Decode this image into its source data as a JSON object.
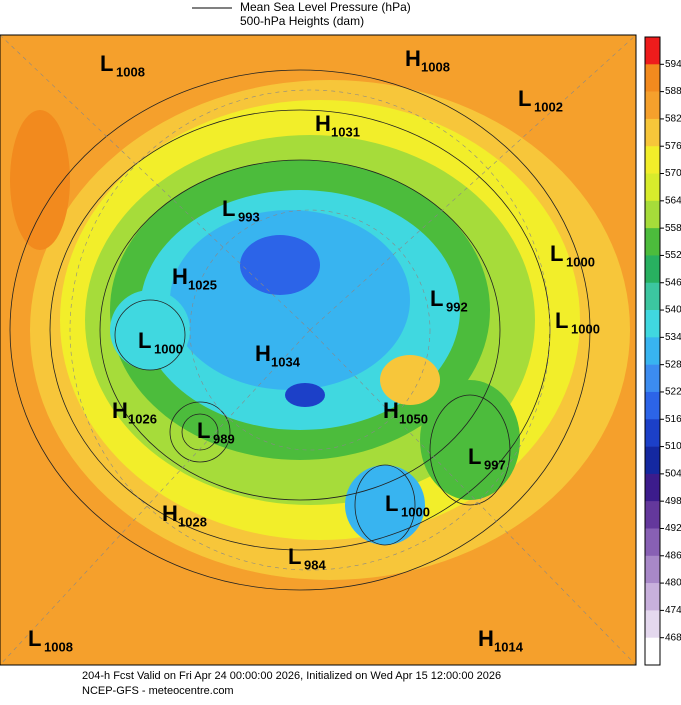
{
  "legend": {
    "lines": [
      "Mean Sea Level Pressure (hPa)",
      "500-hPa Heights (dam)"
    ]
  },
  "centers": [
    {
      "type": "L",
      "value": "1008"
    },
    {
      "type": "H",
      "value": "1008"
    },
    {
      "type": "L",
      "value": "1002"
    },
    {
      "type": "H",
      "value": "1031"
    },
    {
      "type": "L",
      "value": "993"
    },
    {
      "type": "H",
      "value": "1025"
    },
    {
      "type": "L",
      "value": "1000"
    },
    {
      "type": "L",
      "value": "992"
    },
    {
      "type": "L",
      "value": "1000"
    },
    {
      "type": "L",
      "value": "1000"
    },
    {
      "type": "H",
      "value": "1034"
    },
    {
      "type": "H",
      "value": "1026"
    },
    {
      "type": "L",
      "value": "989"
    },
    {
      "type": "H",
      "value": "1050"
    },
    {
      "type": "L",
      "value": "997"
    },
    {
      "type": "L",
      "value": "1000"
    },
    {
      "type": "H",
      "value": "1028"
    },
    {
      "type": "L",
      "value": "984"
    },
    {
      "type": "L",
      "value": "1008"
    },
    {
      "type": "H",
      "value": "1014"
    }
  ],
  "colorbar": {
    "ticks": [
      594,
      588,
      582,
      576,
      570,
      564,
      558,
      552,
      546,
      540,
      534,
      528,
      522,
      516,
      510,
      504,
      498,
      492,
      486,
      480,
      474,
      468
    ],
    "colors": [
      "#ee1c1c",
      "#f28a1e",
      "#f5a02c",
      "#f7c63a",
      "#f2ee2a",
      "#d8ec2c",
      "#a6dc3a",
      "#4cbc3c",
      "#28b060",
      "#3cc6a0",
      "#40d8e0",
      "#38b4f0",
      "#3c8cf0",
      "#2c64e8",
      "#1c40c8",
      "#1428a0",
      "#3c1c8c",
      "#64389c",
      "#8860b4",
      "#a888c8",
      "#c8b0dc",
      "#e4d8ee",
      "#ffffff"
    ]
  },
  "footer": {
    "lines": [
      "204-h Fcst Valid on Fri Apr 24 00:00:00 2026, Initialized on Wed Apr 15 12:00:00 2026",
      "NCEP-GFS  -  meteocentre.com"
    ]
  }
}
